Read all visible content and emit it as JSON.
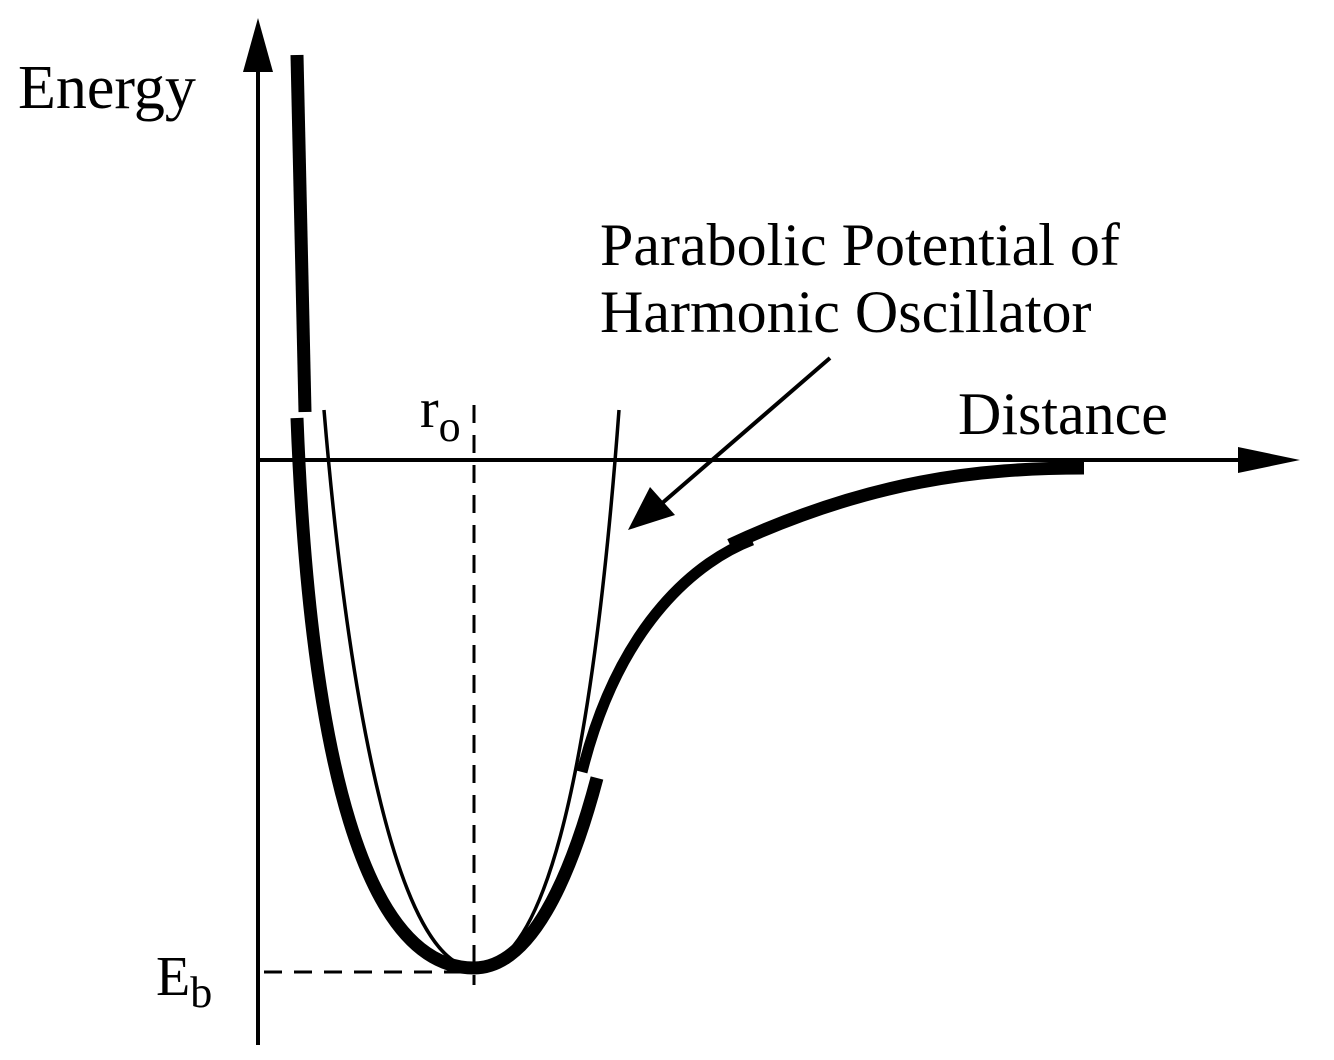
{
  "axes": {
    "y_label": "Energy",
    "x_label": "Distance"
  },
  "markers": {
    "r0_main": "r",
    "r0_sub": "o",
    "eb_main": "E",
    "eb_sub": "b"
  },
  "annotation": {
    "line1": "Parabolic Potential of",
    "line2": "Harmonic Oscillator"
  },
  "colors": {
    "ink": "#000000",
    "background": "#ffffff"
  }
}
